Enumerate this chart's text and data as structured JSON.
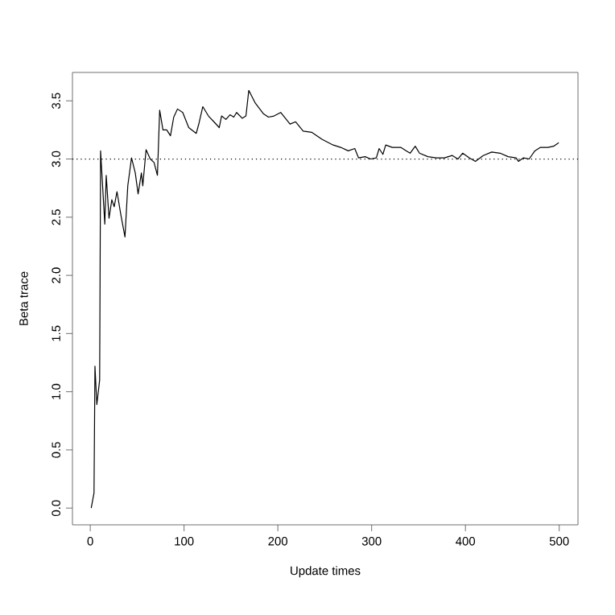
{
  "chart_data": {
    "type": "line",
    "xlabel": "Update times",
    "ylabel": "Beta trace",
    "xlim": [
      -19,
      520
    ],
    "ylim": [
      -0.144,
      3.744
    ],
    "xticks": [
      0,
      100,
      200,
      300,
      400,
      500
    ],
    "yticks": [
      {
        "value": 0,
        "label": "0.0"
      },
      0.5,
      {
        "value": 1,
        "label": "1.0"
      },
      1.5,
      {
        "value": 2,
        "label": "2.0"
      },
      2.5,
      {
        "value": 3,
        "label": "3.0"
      },
      3.5
    ],
    "color": "#000000",
    "line_style": "solid",
    "ref_lines": [
      {
        "axis": "y",
        "value": 3,
        "line_style": "dotted",
        "color": "#000000"
      }
    ],
    "x": [
      1,
      4,
      5,
      7,
      10,
      11,
      15.5,
      17,
      20,
      23,
      25.5,
      28.5,
      32.6,
      37,
      40,
      44,
      48,
      51,
      54.5,
      56,
      59.5,
      64,
      68,
      71.6,
      74,
      77.5,
      81.5,
      85.5,
      89,
      93,
      98.6,
      105,
      113,
      116,
      120,
      126,
      133,
      137.5,
      140,
      144.6,
      149,
      153,
      156,
      162,
      166,
      169,
      176,
      184.5,
      190,
      196,
      203,
      213,
      219,
      227,
      236,
      247,
      259,
      267,
      275,
      282,
      286,
      293,
      299,
      305,
      308,
      312,
      315,
      322,
      331,
      337,
      341,
      346.5,
      351,
      360,
      369,
      377.6,
      386,
      392,
      397,
      404,
      410.6,
      419,
      428,
      437,
      445.5,
      454,
      456.5,
      462,
      468,
      474,
      480,
      488,
      494,
      499.5
    ],
    "values": [
      0,
      0.13,
      1.22,
      0.89,
      1.1,
      3.07,
      2.44,
      2.86,
      2.49,
      2.65,
      2.59,
      2.72,
      2.52,
      2.33,
      2.77,
      3.01,
      2.88,
      2.7,
      2.88,
      2.77,
      3.08,
      3.0,
      2.97,
      2.86,
      3.42,
      3.25,
      3.25,
      3.2,
      3.36,
      3.43,
      3.4,
      3.27,
      3.22,
      3.31,
      3.45,
      3.37,
      3.31,
      3.27,
      3.37,
      3.34,
      3.38,
      3.36,
      3.4,
      3.35,
      3.37,
      3.59,
      3.48,
      3.39,
      3.36,
      3.37,
      3.4,
      3.3,
      3.32,
      3.24,
      3.23,
      3.17,
      3.12,
      3.1,
      3.07,
      3.09,
      3.01,
      3.02,
      3.0,
      3.01,
      3.09,
      3.04,
      3.12,
      3.1,
      3.1,
      3.07,
      3.05,
      3.11,
      3.05,
      3.02,
      3.01,
      3.01,
      3.03,
      3.0,
      3.05,
      3.01,
      2.98,
      3.03,
      3.06,
      3.05,
      3.02,
      3.01,
      2.98,
      3.01,
      3.0,
      3.07,
      3.1,
      3.1,
      3.11,
      3.14
    ]
  }
}
